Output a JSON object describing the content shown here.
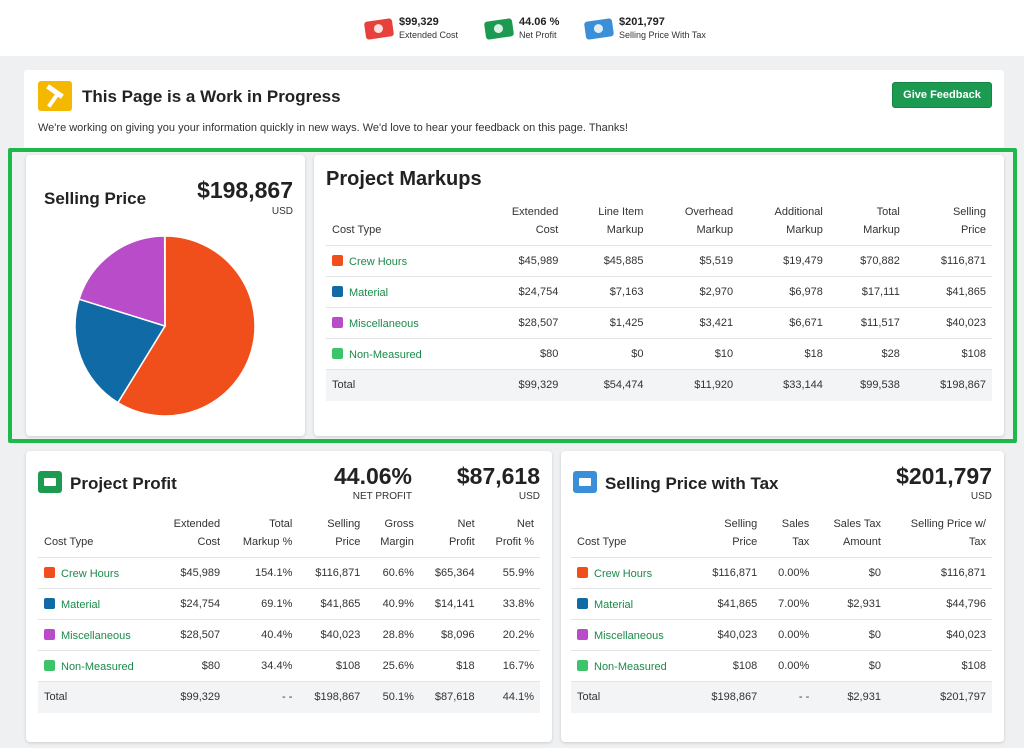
{
  "summary": [
    {
      "value": "$99,329",
      "label": "Extended Cost",
      "color": "#e8403a"
    },
    {
      "value": "44.06 %",
      "label": "Net Profit",
      "color": "#1c9a52"
    },
    {
      "value": "$201,797",
      "label": "Selling Price With Tax",
      "color": "#3b8fd8"
    }
  ],
  "wip": {
    "title": "This Page is a Work in Progress",
    "text": "We're working on giving you your information quickly in new ways. We'd love to hear your feedback on this page. Thanks!",
    "button": "Give Feedback"
  },
  "selling_price": {
    "title": "Selling Price",
    "amount": "$198,867",
    "currency": "USD"
  },
  "chart_data": {
    "type": "pie",
    "categories": [
      "Crew Hours",
      "Material",
      "Miscellaneous",
      "Non-Measured"
    ],
    "values": [
      116871,
      41865,
      40023,
      108
    ],
    "colors": [
      "#f04e1a",
      "#0f6aa6",
      "#b94cc8",
      "#3cc46a"
    ]
  },
  "colors": {
    "crew": "#f04e1a",
    "material": "#0f6aa6",
    "misc": "#b94cc8",
    "nonmeasured": "#3cc46a",
    "accent": "#1c9a52"
  },
  "markups": {
    "title": "Project Markups",
    "headers": [
      [
        "Cost Type"
      ],
      [
        "Extended",
        "Cost"
      ],
      [
        "Line Item",
        "Markup"
      ],
      [
        "Overhead",
        "Markup"
      ],
      [
        "Additional",
        "Markup"
      ],
      [
        "Total",
        "Markup"
      ],
      [
        "Selling",
        "Price"
      ]
    ],
    "rows": [
      {
        "name": "Crew Hours",
        "color": "#f04e1a",
        "cells": [
          "$45,989",
          "$45,885",
          "$5,519",
          "$19,479",
          "$70,882",
          "$116,871"
        ]
      },
      {
        "name": "Material",
        "color": "#0f6aa6",
        "cells": [
          "$24,754",
          "$7,163",
          "$2,970",
          "$6,978",
          "$17,111",
          "$41,865"
        ]
      },
      {
        "name": "Miscellaneous",
        "color": "#b94cc8",
        "cells": [
          "$28,507",
          "$1,425",
          "$3,421",
          "$6,671",
          "$11,517",
          "$40,023"
        ]
      },
      {
        "name": "Non-Measured",
        "color": "#3cc46a",
        "cells": [
          "$80",
          "$0",
          "$10",
          "$18",
          "$28",
          "$108"
        ]
      }
    ],
    "total": {
      "name": "Total",
      "cells": [
        "$99,329",
        "$54,474",
        "$11,920",
        "$33,144",
        "$99,538",
        "$198,867"
      ]
    }
  },
  "profit": {
    "title": "Project Profit",
    "net_pct": "44.06%",
    "net_label": "NET PROFIT",
    "amount": "$87,618",
    "currency": "USD",
    "headers": [
      [
        "Cost Type"
      ],
      [
        "Extended",
        "Cost"
      ],
      [
        "Total",
        "Markup %"
      ],
      [
        "Selling",
        "Price"
      ],
      [
        "Gross",
        "Margin"
      ],
      [
        "Net",
        "Profit"
      ],
      [
        "Net",
        "Profit %"
      ]
    ],
    "rows": [
      {
        "name": "Crew Hours",
        "color": "#f04e1a",
        "cells": [
          "$45,989",
          "154.1%",
          "$116,871",
          "60.6%",
          "$65,364",
          "55.9%"
        ]
      },
      {
        "name": "Material",
        "color": "#0f6aa6",
        "cells": [
          "$24,754",
          "69.1%",
          "$41,865",
          "40.9%",
          "$14,141",
          "33.8%"
        ]
      },
      {
        "name": "Miscellaneous",
        "color": "#b94cc8",
        "cells": [
          "$28,507",
          "40.4%",
          "$40,023",
          "28.8%",
          "$8,096",
          "20.2%"
        ]
      },
      {
        "name": "Non-Measured",
        "color": "#3cc46a",
        "cells": [
          "$80",
          "34.4%",
          "$108",
          "25.6%",
          "$18",
          "16.7%"
        ]
      }
    ],
    "total": {
      "name": "Total",
      "cells": [
        "$99,329",
        "- -",
        "$198,867",
        "50.1%",
        "$87,618",
        "44.1%"
      ]
    }
  },
  "tax": {
    "title": "Selling Price with Tax",
    "amount": "$201,797",
    "currency": "USD",
    "headers": [
      [
        "Cost Type"
      ],
      [
        "Selling",
        "Price"
      ],
      [
        "Sales",
        "Tax"
      ],
      [
        "Sales Tax",
        "Amount"
      ],
      [
        "Selling Price w/",
        "Tax"
      ]
    ],
    "rows": [
      {
        "name": "Crew Hours",
        "color": "#f04e1a",
        "cells": [
          "$116,871",
          "0.00%",
          "$0",
          "$116,871"
        ]
      },
      {
        "name": "Material",
        "color": "#0f6aa6",
        "cells": [
          "$41,865",
          "7.00%",
          "$2,931",
          "$44,796"
        ]
      },
      {
        "name": "Miscellaneous",
        "color": "#b94cc8",
        "cells": [
          "$40,023",
          "0.00%",
          "$0",
          "$40,023"
        ]
      },
      {
        "name": "Non-Measured",
        "color": "#3cc46a",
        "cells": [
          "$108",
          "0.00%",
          "$0",
          "$108"
        ]
      }
    ],
    "total": {
      "name": "Total",
      "cells": [
        "$198,867",
        "- -",
        "$2,931",
        "$201,797"
      ]
    }
  }
}
